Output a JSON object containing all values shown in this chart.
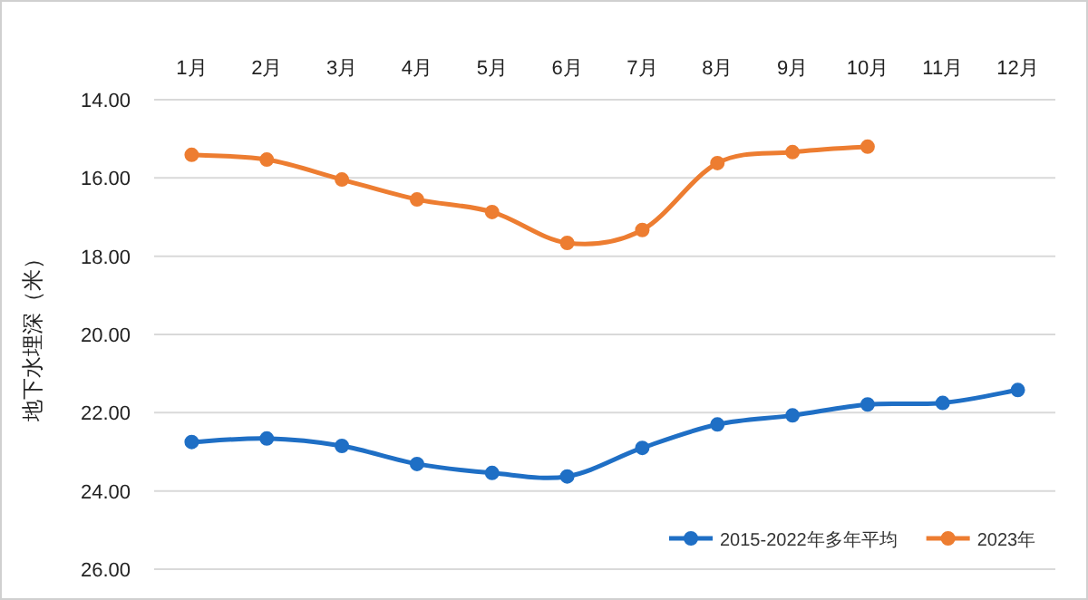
{
  "chart_data": {
    "type": "line",
    "ylabel": "地下水埋深（米）",
    "categories": [
      "1月",
      "2月",
      "3月",
      "4月",
      "5月",
      "6月",
      "7月",
      "8月",
      "9月",
      "10月",
      "11月",
      "12月"
    ],
    "series": [
      {
        "name": "2015-2022年多年平均",
        "color": "#1f6fc5",
        "values": [
          22.75,
          22.66,
          22.85,
          23.31,
          23.54,
          23.63,
          22.9,
          22.3,
          22.07,
          21.79,
          21.75,
          21.42
        ]
      },
      {
        "name": "2023年",
        "color": "#ed7d31",
        "values": [
          15.41,
          15.53,
          16.04,
          16.55,
          16.87,
          17.66,
          17.33,
          15.62,
          15.34,
          15.2,
          null,
          null
        ]
      }
    ],
    "ylim": [
      26,
      14
    ],
    "yticks": [
      {
        "value": 14,
        "label": "14.00"
      },
      {
        "value": 16,
        "label": "16.00"
      },
      {
        "value": 18,
        "label": "18.00"
      },
      {
        "value": 20,
        "label": "20.00"
      },
      {
        "value": 22,
        "label": "22.00"
      },
      {
        "value": 24,
        "label": "24.00"
      },
      {
        "value": 26,
        "label": "26.00"
      }
    ],
    "grid": "y",
    "legend": "bottom right",
    "marker": "circle",
    "line_style": "solid"
  }
}
